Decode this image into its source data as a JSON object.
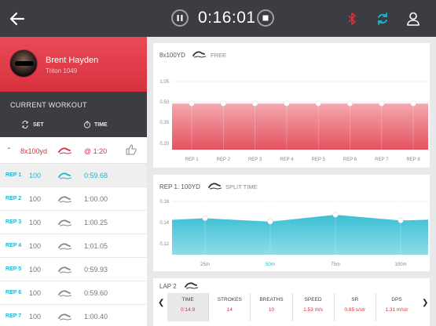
{
  "topbar": {
    "timer": "0:16:01",
    "colors": {
      "bg": "#3b3d42",
      "bluetooth": "#d8313e",
      "sync": "#1ab8d0"
    }
  },
  "profile": {
    "name": "Brent Hayden",
    "subtitle": "Triton 1049"
  },
  "current_workout": {
    "title": "CURRENT WORKOUT",
    "set_label": "SET",
    "time_label": "TIME"
  },
  "set": {
    "description": "8x100yd",
    "interval": "@ 1:20"
  },
  "reps": [
    {
      "label": "REP 1",
      "distance": "100",
      "time": "0:59.68"
    },
    {
      "label": "REP 2",
      "distance": "100",
      "time": "1:00.00"
    },
    {
      "label": "REP 3",
      "distance": "100",
      "time": "1:00.25"
    },
    {
      "label": "REP 4",
      "distance": "100",
      "time": "1:01.05"
    },
    {
      "label": "REP 5",
      "distance": "100",
      "time": "0:59.93"
    },
    {
      "label": "REP 6",
      "distance": "100",
      "time": "0:59.60"
    },
    {
      "label": "REP 7",
      "distance": "100",
      "time": "1:00.40"
    }
  ],
  "chart1": {
    "title": "8x100YD",
    "subtitle": "FREE"
  },
  "chart2": {
    "title": "REP 1: 100YD",
    "subtitle": "SPLIT TIME"
  },
  "chart_data": [
    {
      "type": "area",
      "title": "8x100YD",
      "categories": [
        "REP 1",
        "REP 2",
        "REP 3",
        "REP 4",
        "REP 5",
        "REP 6",
        "REP 7",
        "REP 8"
      ],
      "values": [
        0.5,
        0.5,
        0.5,
        0.5,
        0.5,
        0.5,
        0.5,
        0.5
      ],
      "ytick_labels": [
        "1.05",
        "0.50",
        "0.35",
        "0.20"
      ],
      "grid": true,
      "color": "#e4525f"
    },
    {
      "type": "area",
      "title": "REP 1: 100YD",
      "categories": [
        "25m",
        "50m",
        "75m",
        "100m"
      ],
      "values": [
        0.142,
        0.139,
        0.145,
        0.14
      ],
      "ylim": [
        0.11,
        0.165
      ],
      "ytick_labels": [
        "0.16",
        "0.14",
        "0.12"
      ],
      "grid": true,
      "color": "#3bbfd4"
    }
  ],
  "lap": {
    "title": "LAP 2",
    "stats": [
      {
        "label": "TIME",
        "value": "0:14.9"
      },
      {
        "label": "STROKES",
        "value": "14"
      },
      {
        "label": "BREATHS",
        "value": "10"
      },
      {
        "label": "SPEED",
        "value": "1.53 m/s"
      },
      {
        "label": "SR",
        "value": "0.85 s/str"
      },
      {
        "label": "DPS",
        "value": "1.31 m/str"
      }
    ]
  }
}
